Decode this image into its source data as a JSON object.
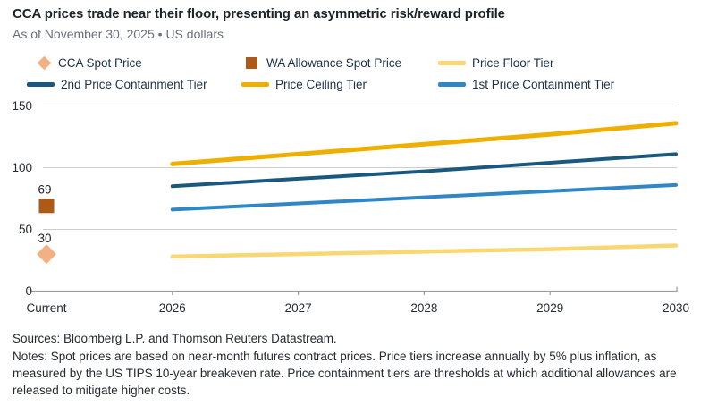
{
  "header": {
    "title": "CCA prices trade near their floor, presenting an asymmetric risk/reward profile",
    "subtitle": "As of November 30, 2025 • US dollars"
  },
  "colors": {
    "cca_spot": "#F1B182",
    "wa_allowance_spot": "#AC5A17",
    "price_floor": "#F9D873",
    "price_ceiling": "#EEAF00",
    "containment_2nd": "#1B587F",
    "containment_1st": "#2F87C5",
    "gridline": "#CDCDCD",
    "axis": "#9E9E9E"
  },
  "legend": [
    {
      "label": "CCA Spot Price",
      "marker": "diamond",
      "color": "#F1B182"
    },
    {
      "label": "WA Allowance Spot Price",
      "marker": "square",
      "color": "#AC5A17"
    },
    {
      "label": "Price Floor Tier",
      "marker": "line",
      "color": "#F9D873"
    },
    {
      "label": "2nd Price Containment Tier",
      "marker": "line",
      "color": "#1B587F"
    },
    {
      "label": "Price Ceiling Tier",
      "marker": "line",
      "color": "#EEAF00"
    },
    {
      "label": "1st Price Containment Tier",
      "marker": "line",
      "color": "#2F87C5"
    }
  ],
  "chart_data": {
    "type": "line",
    "title": "CCA prices trade near their floor, presenting an asymmetric risk/reward profile",
    "xlabel": "",
    "ylabel": "US dollars",
    "ylim": [
      0,
      150
    ],
    "y_ticks": [
      0,
      50,
      100,
      150
    ],
    "grid": true,
    "legend_position": "top",
    "x": [
      "Current",
      "2026",
      "2027",
      "2028",
      "2029",
      "2030"
    ],
    "points": [
      {
        "name": "WA Allowance Spot Price",
        "x": "Current",
        "value": 69,
        "label": "69",
        "marker": "square",
        "color": "#AC5A17"
      },
      {
        "name": "CCA Spot Price",
        "x": "Current",
        "value": 30,
        "label": "30",
        "marker": "diamond",
        "color": "#F1B182"
      }
    ],
    "series": [
      {
        "name": "Price Floor Tier",
        "color": "#F9D873",
        "stroke_width": 4.5,
        "x": [
          "2026",
          "2027",
          "2028",
          "2029",
          "2030"
        ],
        "values": [
          28,
          30,
          32,
          34,
          37
        ]
      },
      {
        "name": "1st Price Containment Tier",
        "color": "#2F87C5",
        "stroke_width": 4,
        "x": [
          "2026",
          "2027",
          "2028",
          "2029",
          "2030"
        ],
        "values": [
          66,
          71,
          76,
          81,
          86
        ]
      },
      {
        "name": "2nd Price Containment Tier",
        "color": "#1B587F",
        "stroke_width": 4,
        "x": [
          "2026",
          "2027",
          "2028",
          "2029",
          "2030"
        ],
        "values": [
          85,
          91,
          97,
          104,
          111
        ]
      },
      {
        "name": "Price Ceiling Tier",
        "color": "#EEAF00",
        "stroke_width": 5,
        "x": [
          "2026",
          "2027",
          "2028",
          "2029",
          "2030"
        ],
        "values": [
          103,
          111,
          119,
          127,
          136
        ]
      }
    ]
  },
  "footer": {
    "sources": "Sources: Bloomberg L.P. and Thomson Reuters Datastream.",
    "notes": "Notes: Spot prices are based on near-month futures contract prices. Price tiers increase annually by 5% plus inflation, as measured by the US TIPS 10-year breakeven rate. Price containment tiers are thresholds at which additional allowances are released to mitigate higher costs."
  }
}
